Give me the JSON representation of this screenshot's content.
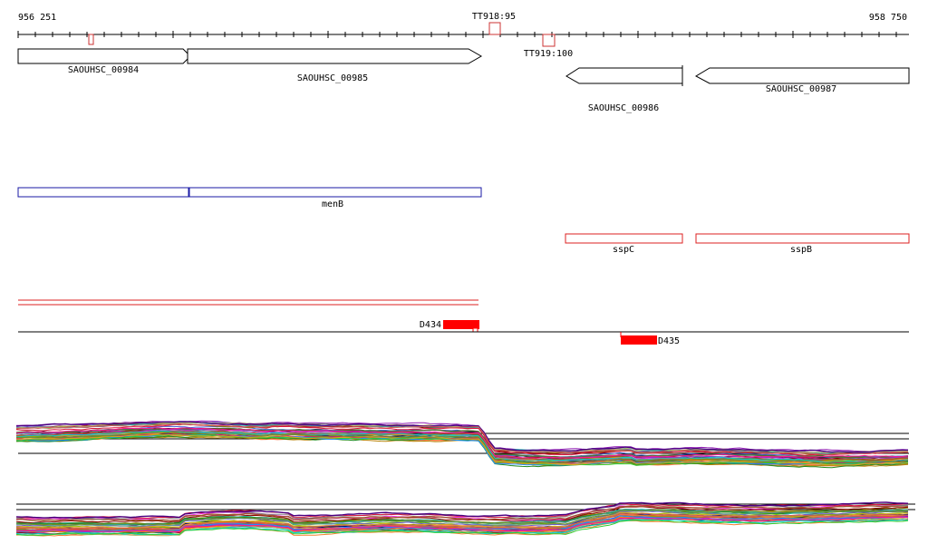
{
  "ruler": {
    "start_label": "956 251",
    "end_label": "958 750",
    "start_pos": 956251,
    "end_pos": 958750
  },
  "terminators": [
    {
      "label": "TT918:95",
      "strand": "+"
    },
    {
      "label": "TT919:100",
      "strand": "-"
    }
  ],
  "genes": [
    {
      "label": "SAOUHSC_00984",
      "strand": "+"
    },
    {
      "label": "SAOUHSC_00985",
      "strand": "+"
    },
    {
      "label": "SAOUHSC_00986",
      "strand": "-"
    },
    {
      "label": "SAOUHSC_00987",
      "strand": "-"
    }
  ],
  "features": {
    "plus_strand": [
      {
        "label": "menB"
      }
    ],
    "minus_strand": [
      {
        "label": "sspC"
      },
      {
        "label": "sspB"
      }
    ]
  },
  "probes": [
    {
      "label": "D434",
      "strand": "+"
    },
    {
      "label": "D435",
      "strand": "-"
    }
  ],
  "colors": {
    "gene_outline": "#000000",
    "plus_feature": "#1a1aa6",
    "minus_feature": "#dd2222",
    "probe_fill": "#ff0000",
    "terminator": "#cc3333"
  },
  "tracks": {
    "top_expression": {
      "profiles": 40
    },
    "bottom_expression": {
      "profiles": 40
    }
  }
}
